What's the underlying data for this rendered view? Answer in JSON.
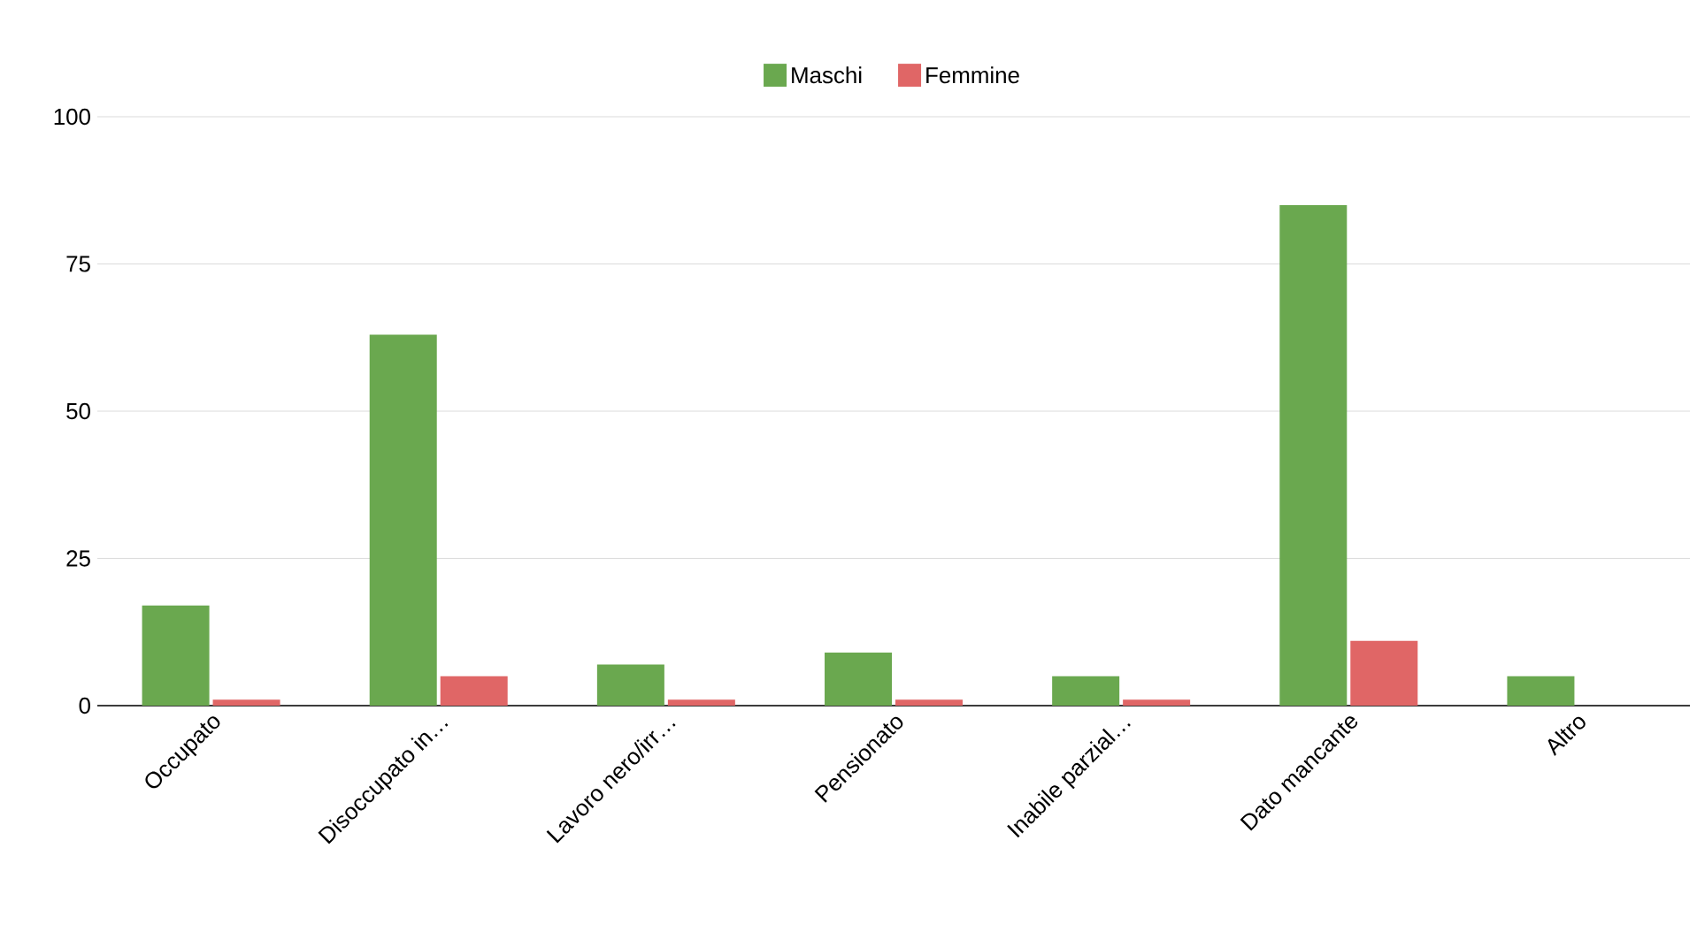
{
  "chart_data": {
    "type": "bar",
    "categories": [
      "Occupato",
      "Disoccupato in…",
      "Lavoro nero/irr…",
      "Pensionato",
      "Inabile parzial…",
      "Dato mancante",
      "Altro"
    ],
    "series": [
      {
        "name": "Maschi",
        "color": "#6aa84f",
        "values": [
          17,
          63,
          7,
          9,
          5,
          85,
          5
        ]
      },
      {
        "name": "Femmine",
        "color": "#e06666",
        "values": [
          1,
          5,
          1,
          1,
          1,
          11,
          0
        ]
      }
    ],
    "ylim": [
      0,
      100
    ],
    "yticks": [
      0,
      25,
      50,
      75,
      100
    ],
    "grid": "y",
    "legend": "top"
  }
}
